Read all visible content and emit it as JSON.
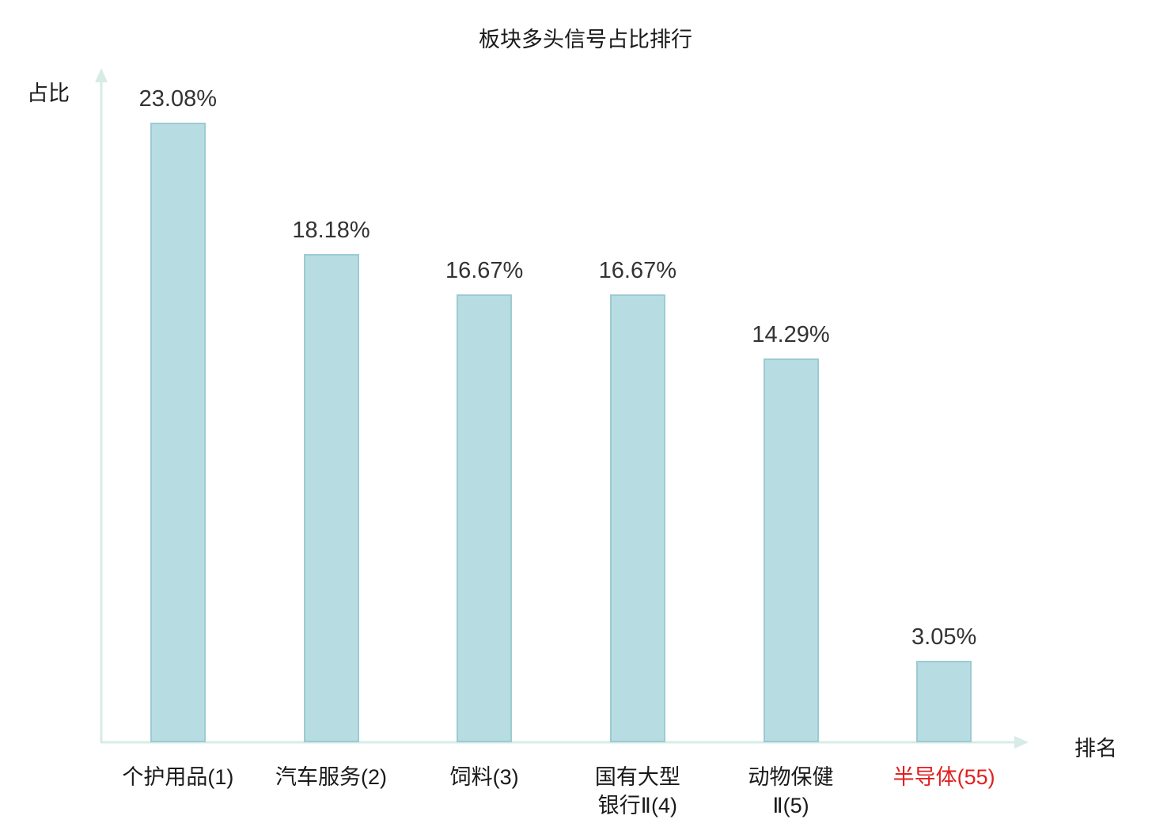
{
  "title": "板块多头信号占比排行",
  "axes": {
    "y_label": "占比",
    "x_label": "排名"
  },
  "colors": {
    "bar_fill": "#b7dde2",
    "bar_border": "#9ccbd2",
    "axis": "#d7ece7",
    "value_label": "#333333",
    "category_label": "#1a1a1a",
    "highlight_label": "#e02020"
  },
  "chart_data": {
    "type": "bar",
    "title": "板块多头信号占比排行",
    "xlabel": "排名",
    "ylabel": "占比",
    "categories": [
      "个护用品(1)",
      "汽车服务(2)",
      "饲料(3)",
      "国有大型银行Ⅱ(4)",
      "动物保健Ⅱ(5)",
      "半导体(55)"
    ],
    "category_lines": [
      [
        "个护用品(1)"
      ],
      [
        "汽车服务(2)"
      ],
      [
        "饲料(3)"
      ],
      [
        "国有大型",
        "银行Ⅱ(4)"
      ],
      [
        "动物保健",
        "Ⅱ(5)"
      ],
      [
        "半导体(55)"
      ]
    ],
    "values": [
      23.08,
      18.18,
      16.67,
      16.67,
      14.29,
      3.05
    ],
    "value_labels": [
      "23.08%",
      "18.18%",
      "16.67%",
      "16.67%",
      "14.29%",
      "3.05%"
    ],
    "highlight_index": 5,
    "ylim": [
      0,
      25
    ],
    "grid": false,
    "legend": "none"
  }
}
